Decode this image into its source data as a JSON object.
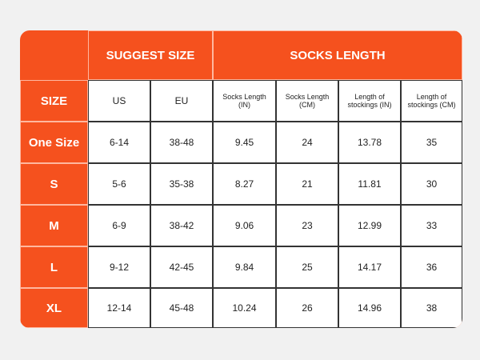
{
  "table": {
    "group_headers": [
      "SUGGEST SIZE",
      "SOCKS LENGTH"
    ],
    "columns": [
      "SIZE",
      "US",
      "EU",
      "Socks Length (IN)",
      "Socks Length (CM)",
      "Length of stockings (IN)",
      "Length of stockings (CM)"
    ],
    "rows": [
      [
        "One Size",
        "6-14",
        "38-48",
        "9.45",
        "24",
        "13.78",
        "35"
      ],
      [
        "S",
        "5-6",
        "35-38",
        "8.27",
        "21",
        "11.81",
        "30"
      ],
      [
        "M",
        "6-9",
        "38-42",
        "9.06",
        "23",
        "12.99",
        "33"
      ],
      [
        "L",
        "9-12",
        "42-45",
        "9.84",
        "25",
        "14.17",
        "36"
      ],
      [
        "XL",
        "12-14",
        "45-48",
        "10.24",
        "26",
        "14.96",
        "38"
      ]
    ]
  }
}
